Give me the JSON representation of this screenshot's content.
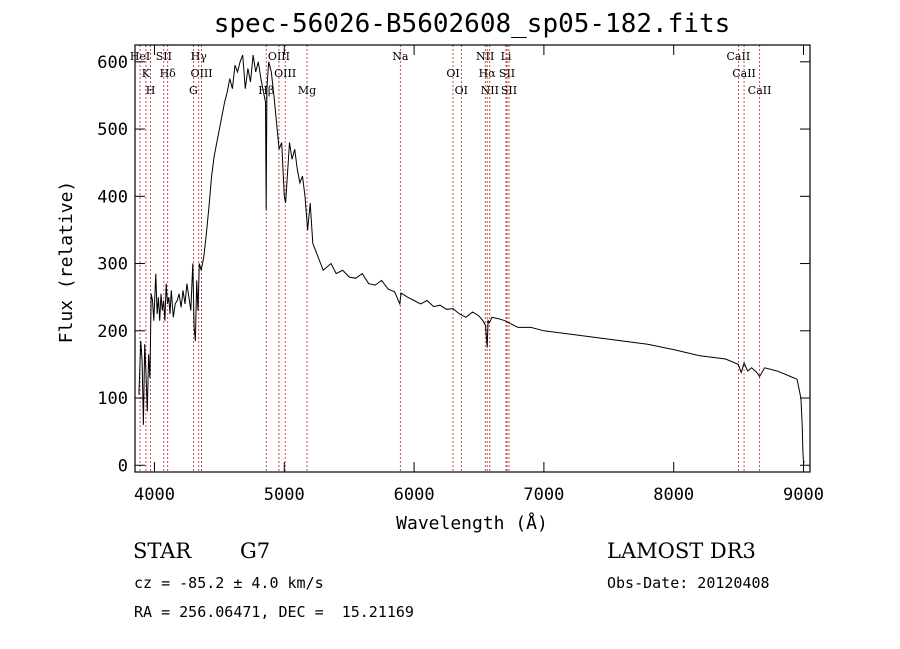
{
  "chart_data": {
    "type": "line",
    "title": "spec-56026-B5602608_sp05-182.fits",
    "xlabel": "Wavelength (Å)",
    "ylabel": "Flux (relative)",
    "xlim": [
      3850,
      9050
    ],
    "ylim": [
      -10,
      625
    ],
    "xticks": [
      4000,
      5000,
      6000,
      7000,
      8000,
      9000
    ],
    "yticks": [
      0,
      100,
      200,
      300,
      400,
      500,
      600
    ],
    "grid": false,
    "series": [
      {
        "name": "spectrum",
        "x": [
          3880,
          3895,
          3905,
          3915,
          3925,
          3935,
          3945,
          3955,
          3965,
          3975,
          3985,
          3995,
          4010,
          4020,
          4030,
          4040,
          4050,
          4060,
          4070,
          4080,
          4090,
          4100,
          4110,
          4120,
          4130,
          4145,
          4160,
          4175,
          4190,
          4205,
          4220,
          4235,
          4250,
          4265,
          4280,
          4295,
          4305,
          4315,
          4325,
          4335,
          4345,
          4360,
          4380,
          4400,
          4420,
          4440,
          4460,
          4480,
          4500,
          4520,
          4540,
          4560,
          4580,
          4600,
          4620,
          4640,
          4660,
          4680,
          4700,
          4720,
          4740,
          4760,
          4780,
          4800,
          4820,
          4840,
          4855,
          4861,
          4866,
          4880,
          4900,
          4920,
          4940,
          4960,
          4980,
          5000,
          5010,
          5020,
          5040,
          5060,
          5080,
          5100,
          5120,
          5140,
          5160,
          5180,
          5200,
          5220,
          5240,
          5260,
          5280,
          5300,
          5330,
          5360,
          5400,
          5450,
          5500,
          5550,
          5600,
          5650,
          5700,
          5750,
          5800,
          5850,
          5890,
          5900,
          5950,
          6000,
          6050,
          6100,
          6150,
          6200,
          6250,
          6300,
          6350,
          6400,
          6450,
          6500,
          6530,
          6550,
          6563,
          6570,
          6580,
          6600,
          6650,
          6700,
          6750,
          6800,
          6900,
          7000,
          7200,
          7400,
          7600,
          7800,
          8000,
          8200,
          8400,
          8498,
          8520,
          8542,
          8570,
          8600,
          8640,
          8662,
          8700,
          8800,
          8900,
          8950,
          8980,
          8990,
          8995,
          9000,
          9010
        ],
        "values": [
          105,
          185,
          155,
          60,
          180,
          135,
          80,
          165,
          130,
          255,
          245,
          215,
          285,
          225,
          250,
          215,
          255,
          230,
          245,
          215,
          270,
          240,
          250,
          225,
          260,
          220,
          240,
          245,
          255,
          235,
          260,
          240,
          270,
          250,
          230,
          300,
          205,
          185,
          275,
          230,
          300,
          290,
          310,
          345,
          385,
          430,
          460,
          480,
          500,
          520,
          540,
          555,
          575,
          560,
          595,
          585,
          600,
          610,
          560,
          590,
          570,
          610,
          585,
          600,
          575,
          555,
          540,
          380,
          560,
          600,
          585,
          550,
          510,
          470,
          480,
          400,
          390,
          420,
          480,
          455,
          470,
          440,
          420,
          430,
          400,
          350,
          390,
          330,
          320,
          310,
          300,
          290,
          295,
          300,
          285,
          290,
          280,
          278,
          285,
          270,
          268,
          275,
          262,
          258,
          240,
          256,
          250,
          245,
          240,
          245,
          236,
          238,
          232,
          233,
          225,
          220,
          228,
          222,
          215,
          208,
          175,
          215,
          212,
          220,
          218,
          215,
          210,
          205,
          205,
          200,
          195,
          190,
          185,
          180,
          172,
          163,
          158,
          150,
          138,
          152,
          140,
          145,
          138,
          132,
          145,
          140,
          132,
          128,
          100,
          60,
          20,
          5,
          5
        ]
      }
    ]
  },
  "annotation_lines": [
    {
      "wavelength": 3889,
      "label": "HeI"
    },
    {
      "wavelength": 3934,
      "label": "K"
    },
    {
      "wavelength": 3970,
      "label": "H"
    },
    {
      "wavelength": 4072,
      "label": "SII"
    },
    {
      "wavelength": 4102,
      "label": "Hδ"
    },
    {
      "wavelength": 4300,
      "label": "G"
    },
    {
      "wavelength": 4341,
      "label": "Hγ"
    },
    {
      "wavelength": 4363,
      "label": "OIII"
    },
    {
      "wavelength": 4861,
      "label": "Hβ"
    },
    {
      "wavelength": 4959,
      "label": "OIII"
    },
    {
      "wavelength": 5007,
      "label": "OIII"
    },
    {
      "wavelength": 5175,
      "label": "Mg"
    },
    {
      "wavelength": 5894,
      "label": "Na"
    },
    {
      "wavelength": 6300,
      "label": "OI"
    },
    {
      "wavelength": 6364,
      "label": "OI"
    },
    {
      "wavelength": 6548,
      "label": "NII"
    },
    {
      "wavelength": 6563,
      "label": "Hα"
    },
    {
      "wavelength": 6583,
      "label": "NII"
    },
    {
      "wavelength": 6708,
      "label": "Li"
    },
    {
      "wavelength": 6716,
      "label": "SII"
    },
    {
      "wavelength": 6731,
      "label": "SII"
    },
    {
      "wavelength": 8498,
      "label": "CaII"
    },
    {
      "wavelength": 8542,
      "label": "CaII"
    },
    {
      "wavelength": 8662,
      "label": "CaII"
    }
  ],
  "info": {
    "class": "STAR",
    "subclass": "G7",
    "survey": "LAMOST DR3",
    "redshift": "cz = -85.2 ± 4.0 km/s",
    "obs_date": "Obs-Date: 20120408",
    "coords": "RA = 256.06471, DEC =  15.21169"
  },
  "colors": {
    "spectrum": "#000000",
    "annotation_line": "#b22222",
    "frame": "#000000",
    "background": "#ffffff"
  }
}
